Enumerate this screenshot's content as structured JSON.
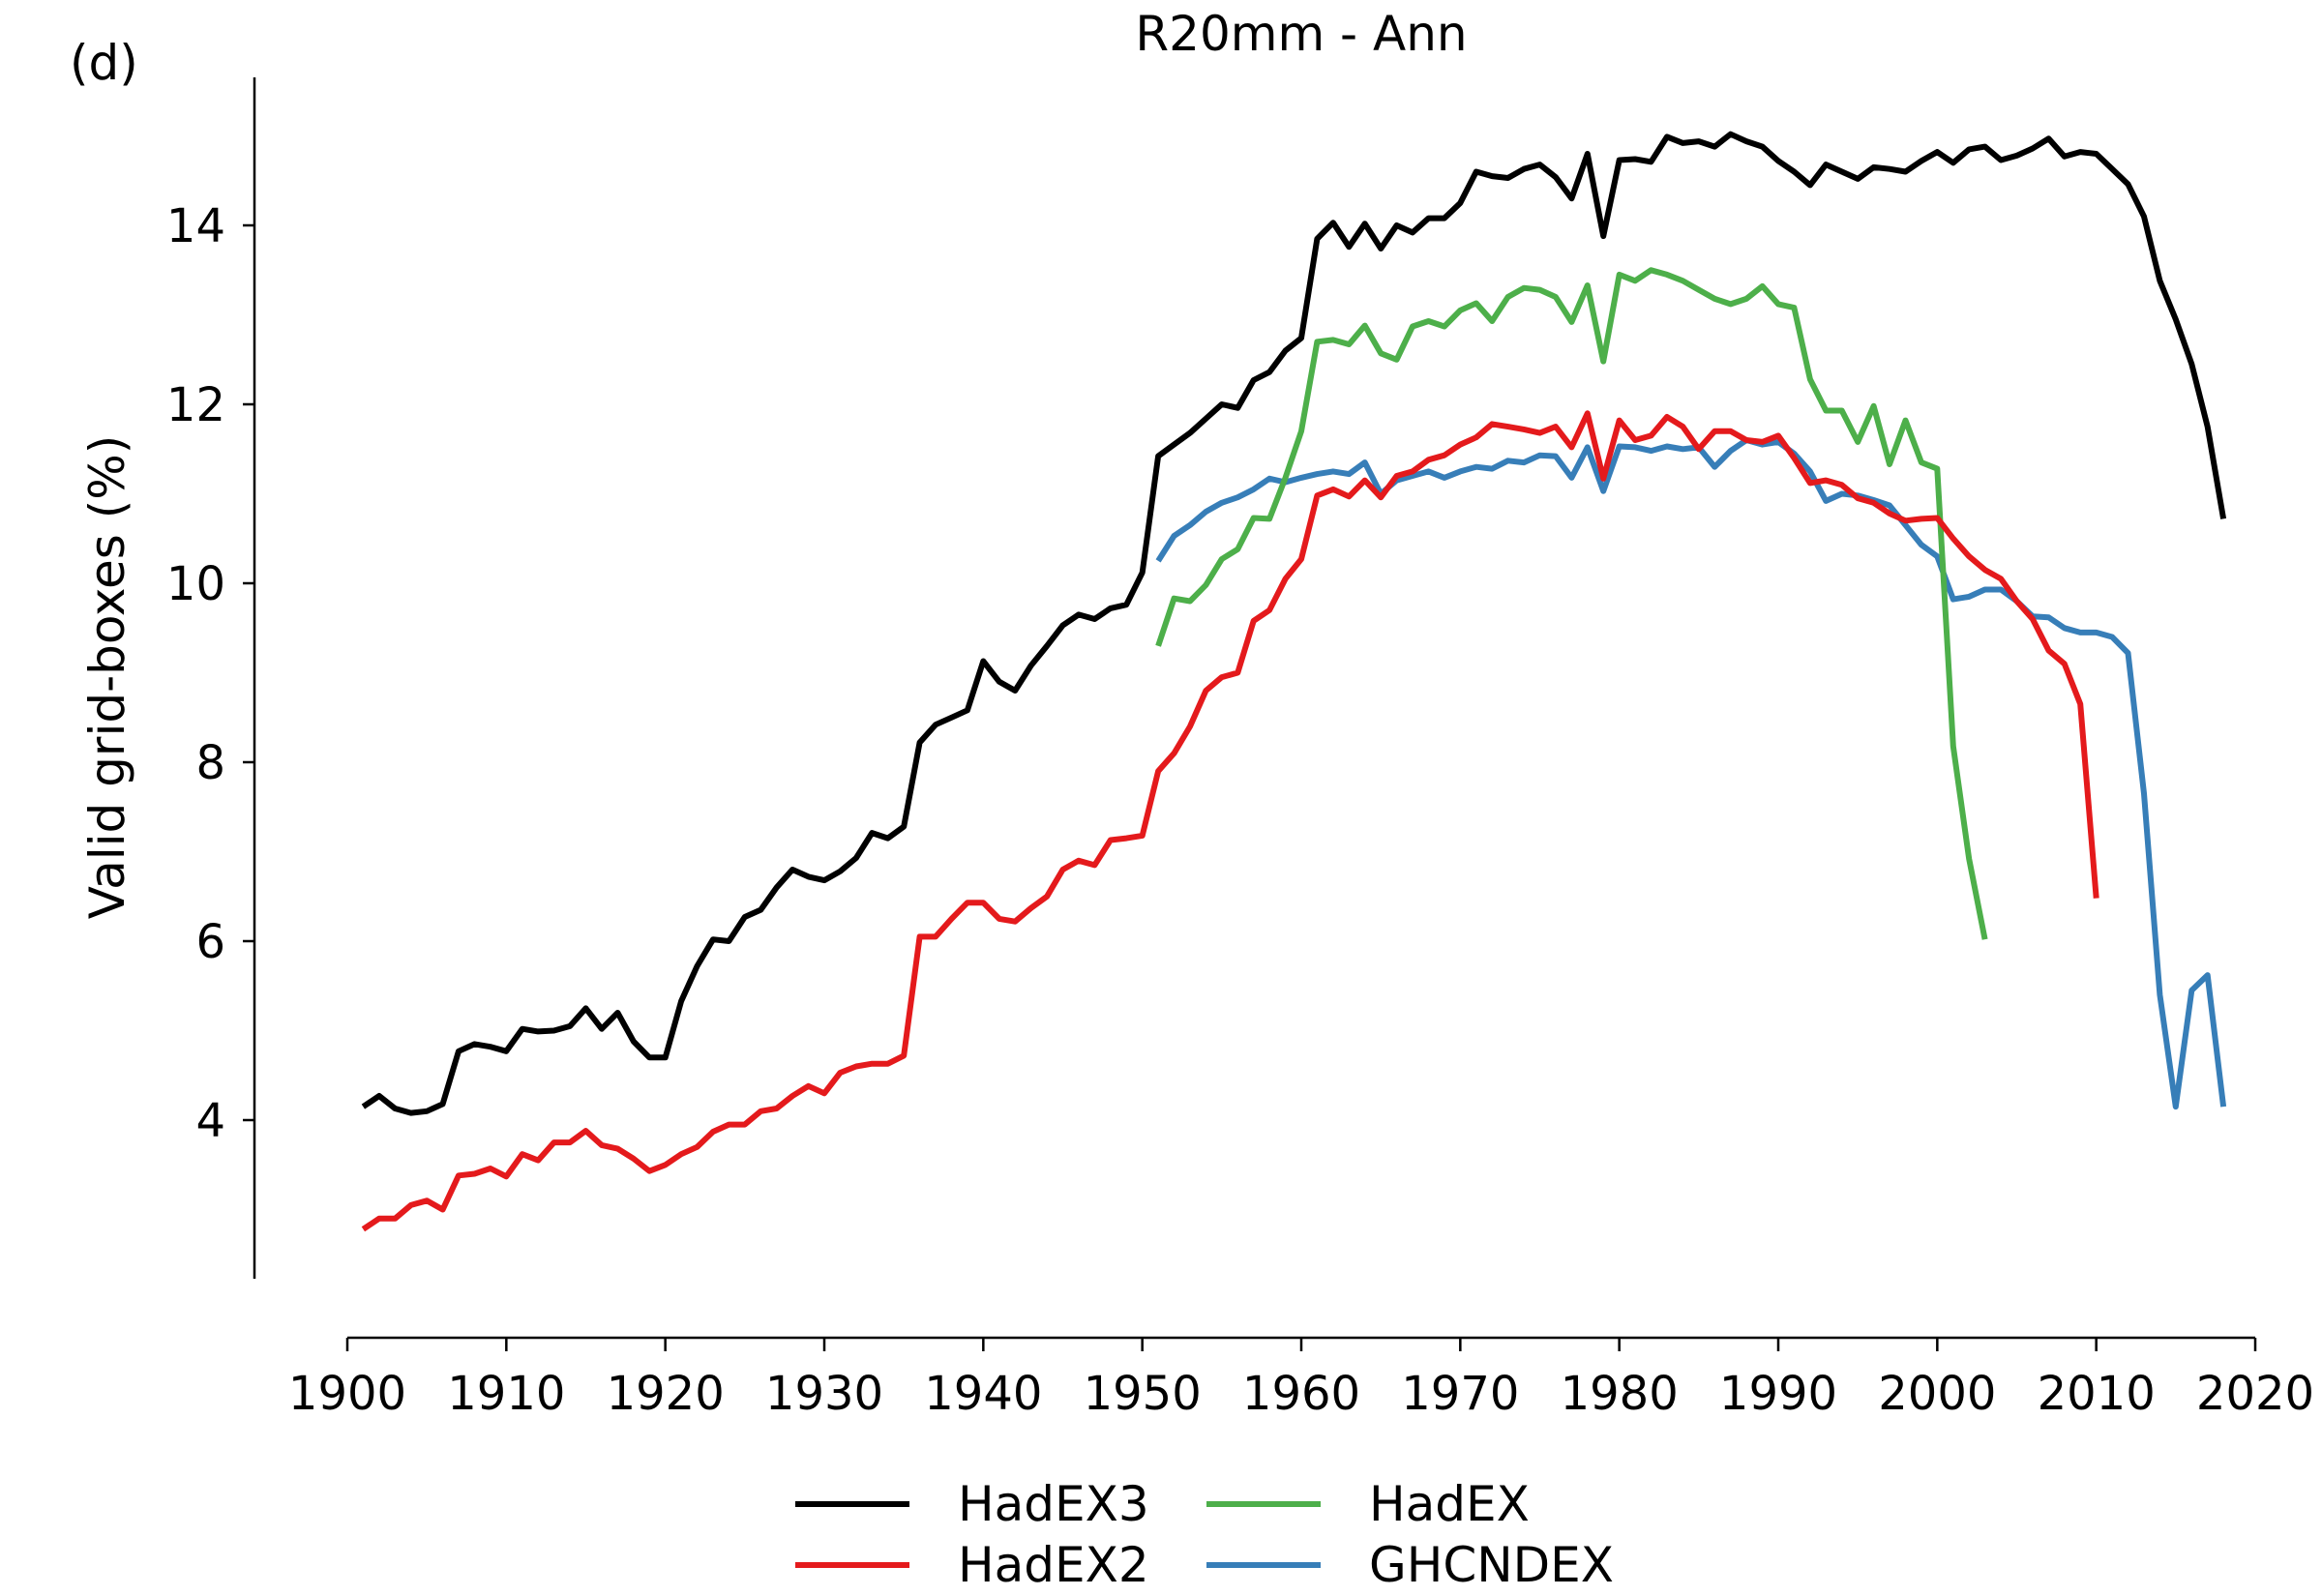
{
  "panel_label": "(d)",
  "chart_data": {
    "type": "line",
    "title": "R20mm - Ann",
    "xlabel": "",
    "ylabel": "Valid grid-boxes (%)",
    "xlim": [
      1900,
      2020
    ],
    "ylim": [
      2.5,
      15.5
    ],
    "xticks": [
      1900,
      1910,
      1920,
      1930,
      1940,
      1950,
      1960,
      1970,
      1980,
      1990,
      2000,
      2010,
      2020
    ],
    "yticks": [
      4,
      6,
      8,
      10,
      12,
      14
    ],
    "grid": false,
    "legend_position": "bottom-center",
    "series": [
      {
        "name": "HadEX3",
        "color": "#000000",
        "x": [
          1901,
          1902,
          1903,
          1904,
          1905,
          1906,
          1907,
          1908,
          1909,
          1910,
          1911,
          1912,
          1913,
          1914,
          1915,
          1916,
          1917,
          1918,
          1919,
          1920,
          1921,
          1922,
          1923,
          1924,
          1925,
          1926,
          1927,
          1928,
          1929,
          1930,
          1931,
          1932,
          1933,
          1934,
          1935,
          1936,
          1937,
          1938,
          1939,
          1940,
          1941,
          1942,
          1943,
          1944,
          1945,
          1946,
          1947,
          1948,
          1949,
          1950,
          1951,
          1952,
          1953,
          1954,
          1955,
          1956,
          1957,
          1958,
          1959,
          1960,
          1961,
          1962,
          1963,
          1964,
          1965,
          1966,
          1967,
          1968,
          1969,
          1970,
          1971,
          1972,
          1973,
          1974,
          1975,
          1976,
          1977,
          1978,
          1979,
          1980,
          1981,
          1982,
          1983,
          1984,
          1985,
          1986,
          1987,
          1988,
          1989,
          1990,
          1991,
          1992,
          1993,
          1994,
          1995,
          1996,
          1997,
          1998,
          1999,
          2000,
          2001,
          2002,
          2003,
          2004,
          2005,
          2006,
          2007,
          2008,
          2009,
          2010,
          2011,
          2012,
          2013,
          2014,
          2015,
          2016,
          2017,
          2018
        ],
        "y": [
          4.15,
          4.27,
          4.13,
          4.08,
          4.1,
          4.18,
          4.77,
          4.85,
          4.82,
          4.77,
          5.02,
          4.99,
          5.0,
          5.05,
          5.25,
          5.02,
          5.2,
          4.88,
          4.7,
          4.7,
          5.33,
          5.72,
          6.02,
          6.0,
          6.27,
          6.35,
          6.6,
          6.8,
          6.72,
          6.68,
          6.78,
          6.93,
          7.21,
          7.15,
          7.28,
          8.22,
          8.42,
          8.5,
          8.58,
          9.13,
          8.9,
          8.8,
          9.08,
          9.3,
          9.53,
          9.65,
          9.6,
          9.72,
          9.76,
          10.12,
          11.42,
          11.55,
          11.68,
          11.84,
          12.0,
          11.96,
          12.27,
          12.36,
          12.6,
          12.74,
          13.85,
          14.03,
          13.76,
          14.02,
          13.74,
          14.0,
          13.92,
          14.08,
          14.08,
          14.25,
          14.6,
          14.55,
          14.53,
          14.63,
          14.68,
          14.54,
          14.3,
          14.8,
          13.88,
          14.73,
          14.74,
          14.71,
          14.99,
          14.92,
          14.94,
          14.88,
          15.02,
          14.94,
          14.88,
          14.72,
          14.6,
          14.45,
          14.68,
          14.6,
          14.52,
          14.65,
          14.63,
          14.6,
          14.72,
          14.82,
          14.7,
          14.85,
          14.88,
          14.73,
          14.78,
          14.86,
          14.97,
          14.77,
          14.82,
          14.8,
          14.63,
          14.46,
          14.1,
          13.38,
          12.95,
          12.45,
          11.75,
          10.72
        ]
      },
      {
        "name": "HadEX2",
        "color": "#e41a1c",
        "x": [
          1901,
          1902,
          1903,
          1904,
          1905,
          1906,
          1907,
          1908,
          1909,
          1910,
          1911,
          1912,
          1913,
          1914,
          1915,
          1916,
          1917,
          1918,
          1919,
          1920,
          1921,
          1922,
          1923,
          1924,
          1925,
          1926,
          1927,
          1928,
          1929,
          1930,
          1931,
          1932,
          1933,
          1934,
          1935,
          1936,
          1937,
          1938,
          1939,
          1940,
          1941,
          1942,
          1943,
          1944,
          1945,
          1946,
          1947,
          1948,
          1949,
          1950,
          1951,
          1952,
          1953,
          1954,
          1955,
          1956,
          1957,
          1958,
          1959,
          1960,
          1961,
          1962,
          1963,
          1964,
          1965,
          1966,
          1967,
          1968,
          1969,
          1970,
          1971,
          1972,
          1973,
          1974,
          1975,
          1976,
          1977,
          1978,
          1979,
          1980,
          1981,
          1982,
          1983,
          1984,
          1985,
          1986,
          1987,
          1988,
          1989,
          1990,
          1991,
          1992,
          1993,
          1994,
          1995,
          1996,
          1997,
          1998,
          1999,
          2000,
          2001,
          2002,
          2003,
          2004,
          2005,
          2006,
          2007,
          2008,
          2009,
          2010
        ],
        "y": [
          2.78,
          2.9,
          2.9,
          3.05,
          3.1,
          3.0,
          3.38,
          3.4,
          3.46,
          3.37,
          3.62,
          3.55,
          3.75,
          3.75,
          3.88,
          3.72,
          3.68,
          3.57,
          3.43,
          3.5,
          3.62,
          3.7,
          3.87,
          3.95,
          3.95,
          4.1,
          4.13,
          4.27,
          4.38,
          4.3,
          4.53,
          4.6,
          4.63,
          4.63,
          4.72,
          6.05,
          6.05,
          6.25,
          6.43,
          6.43,
          6.25,
          6.22,
          6.37,
          6.5,
          6.8,
          6.9,
          6.85,
          7.13,
          7.15,
          7.18,
          7.9,
          8.1,
          8.4,
          8.8,
          8.95,
          9.0,
          9.58,
          9.7,
          10.05,
          10.27,
          10.98,
          11.05,
          10.97,
          11.15,
          10.96,
          11.2,
          11.25,
          11.38,
          11.43,
          11.55,
          11.63,
          11.78,
          11.75,
          11.72,
          11.68,
          11.75,
          11.52,
          11.9,
          11.17,
          11.82,
          11.6,
          11.65,
          11.86,
          11.75,
          11.5,
          11.7,
          11.7,
          11.6,
          11.58,
          11.65,
          11.4,
          11.12,
          11.15,
          11.1,
          10.95,
          10.9,
          10.78,
          10.7,
          10.72,
          10.73,
          10.5,
          10.3,
          10.15,
          10.05,
          9.8,
          9.6,
          9.25,
          9.1,
          8.65,
          6.48
        ]
      },
      {
        "name": "HadEX",
        "color": "#4daf4a",
        "x": [
          1951,
          1952,
          1953,
          1954,
          1955,
          1956,
          1957,
          1958,
          1959,
          1960,
          1961,
          1962,
          1963,
          1964,
          1965,
          1966,
          1967,
          1968,
          1969,
          1970,
          1971,
          1972,
          1973,
          1974,
          1975,
          1976,
          1977,
          1978,
          1979,
          1980,
          1981,
          1982,
          1983,
          1984,
          1985,
          1986,
          1987,
          1988,
          1989,
          1990,
          1991,
          1992,
          1993,
          1994,
          1995,
          1996,
          1997,
          1998,
          1999,
          2000,
          2001,
          2002,
          2003
        ],
        "y": [
          9.3,
          9.83,
          9.8,
          9.98,
          10.27,
          10.38,
          10.73,
          10.72,
          11.18,
          11.7,
          12.7,
          12.72,
          12.67,
          12.88,
          12.57,
          12.5,
          12.87,
          12.93,
          12.87,
          13.05,
          13.13,
          12.93,
          13.2,
          13.3,
          13.28,
          13.2,
          12.92,
          13.33,
          12.48,
          13.45,
          13.38,
          13.5,
          13.45,
          13.38,
          13.28,
          13.18,
          13.12,
          13.18,
          13.32,
          13.12,
          13.08,
          12.28,
          11.93,
          11.93,
          11.58,
          11.98,
          11.33,
          11.82,
          11.35,
          11.28,
          8.18,
          6.92,
          6.02
        ]
      },
      {
        "name": "GHCNDEX",
        "color": "#377eb8",
        "x": [
          1951,
          1952,
          1953,
          1954,
          1955,
          1956,
          1957,
          1958,
          1959,
          1960,
          1961,
          1962,
          1963,
          1964,
          1965,
          1966,
          1967,
          1968,
          1969,
          1970,
          1971,
          1972,
          1973,
          1974,
          1975,
          1976,
          1977,
          1978,
          1979,
          1980,
          1981,
          1982,
          1983,
          1984,
          1985,
          1986,
          1987,
          1988,
          1989,
          1990,
          1991,
          1992,
          1993,
          1994,
          1995,
          1996,
          1997,
          1998,
          1999,
          2000,
          2001,
          2002,
          2003,
          2004,
          2005,
          2006,
          2007,
          2008,
          2009,
          2010,
          2011,
          2012,
          2013,
          2014,
          2015,
          2016,
          2017,
          2018
        ],
        "y": [
          10.25,
          10.53,
          10.65,
          10.8,
          10.9,
          10.96,
          11.05,
          11.17,
          11.13,
          11.18,
          11.22,
          11.25,
          11.22,
          11.35,
          11.0,
          11.15,
          11.2,
          11.25,
          11.18,
          11.25,
          11.3,
          11.28,
          11.37,
          11.35,
          11.43,
          11.42,
          11.18,
          11.52,
          11.03,
          11.53,
          11.52,
          11.48,
          11.53,
          11.5,
          11.52,
          11.3,
          11.48,
          11.6,
          11.55,
          11.58,
          11.45,
          11.25,
          10.92,
          11.0,
          10.98,
          10.93,
          10.87,
          10.65,
          10.43,
          10.3,
          9.82,
          9.85,
          9.93,
          9.93,
          9.8,
          9.63,
          9.62,
          9.5,
          9.45,
          9.45,
          9.4,
          9.22,
          7.65,
          5.4,
          4.15,
          5.45,
          5.62,
          4.15
        ]
      }
    ]
  }
}
